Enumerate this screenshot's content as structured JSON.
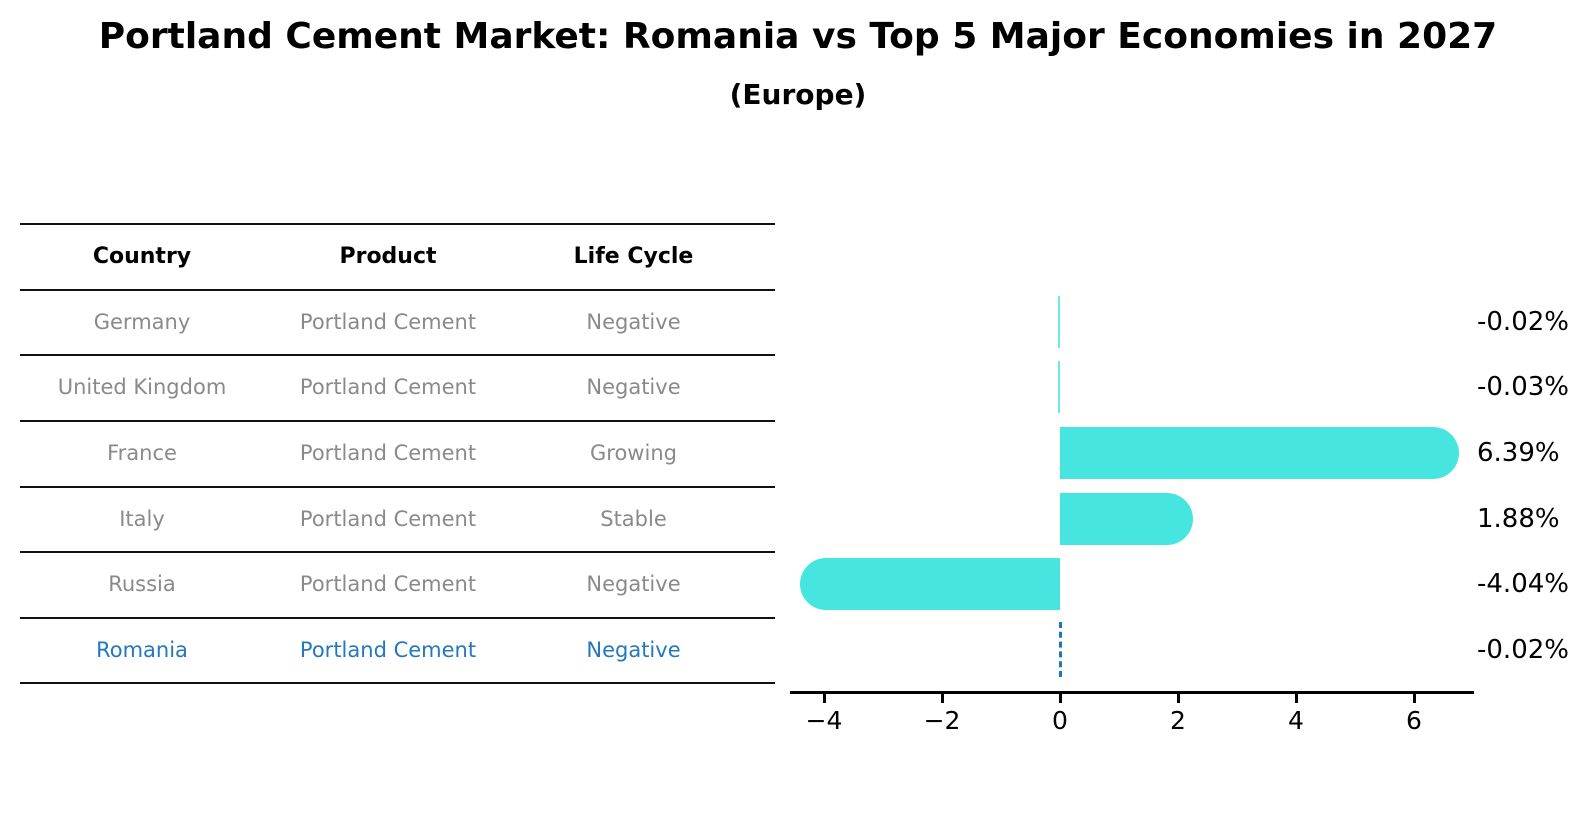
{
  "title": "Portland Cement Market: Romania vs Top 5 Major Economies in 2027",
  "subtitle": "(Europe)",
  "colors": {
    "bar": "#46E5E0",
    "highlight_blue": "#1f77b4",
    "row_text_gray": "#8a8a8a",
    "header_text": "#000000",
    "axis": "#000000"
  },
  "table": {
    "headers": [
      "Country",
      "Product",
      "Life Cycle"
    ],
    "rows": [
      {
        "country": "Germany",
        "product": "Portland Cement",
        "life_cycle": "Negative",
        "highlighted": false
      },
      {
        "country": "United Kingdom",
        "product": "Portland Cement",
        "life_cycle": "Negative",
        "highlighted": false
      },
      {
        "country": "France",
        "product": "Portland Cement",
        "life_cycle": "Growing",
        "highlighted": false
      },
      {
        "country": "Italy",
        "product": "Portland Cement",
        "life_cycle": "Stable",
        "highlighted": false
      },
      {
        "country": "Russia",
        "product": "Portland Cement",
        "life_cycle": "Negative",
        "highlighted": false
      },
      {
        "country": "Romania",
        "product": "Portland Cement",
        "life_cycle": "Negative",
        "highlighted": true
      }
    ]
  },
  "chart_data": {
    "type": "bar",
    "orientation": "horizontal",
    "categories": [
      "Germany",
      "United Kingdom",
      "France",
      "Italy",
      "Russia",
      "Romania"
    ],
    "values": [
      -0.02,
      -0.03,
      6.39,
      1.88,
      -4.04,
      -0.02
    ],
    "value_labels": [
      "-0.02%",
      "-0.03%",
      "6.39%",
      "1.88%",
      "-4.04%",
      "-0.02%"
    ],
    "highlighted_category": "Romania",
    "highlight_style": "dashed-blue-edge",
    "x_ticks": [
      -4,
      -2,
      0,
      2,
      4,
      6
    ],
    "x_tick_labels": [
      "−4",
      "−2",
      "0",
      "2",
      "4",
      "6"
    ],
    "xlim": [
      -4.6,
      7.0
    ],
    "grid": false,
    "legend": null,
    "title": "Portland Cement Market: Romania vs Top 5 Major Economies in 2027 (Europe)",
    "xlabel": "",
    "ylabel": ""
  }
}
